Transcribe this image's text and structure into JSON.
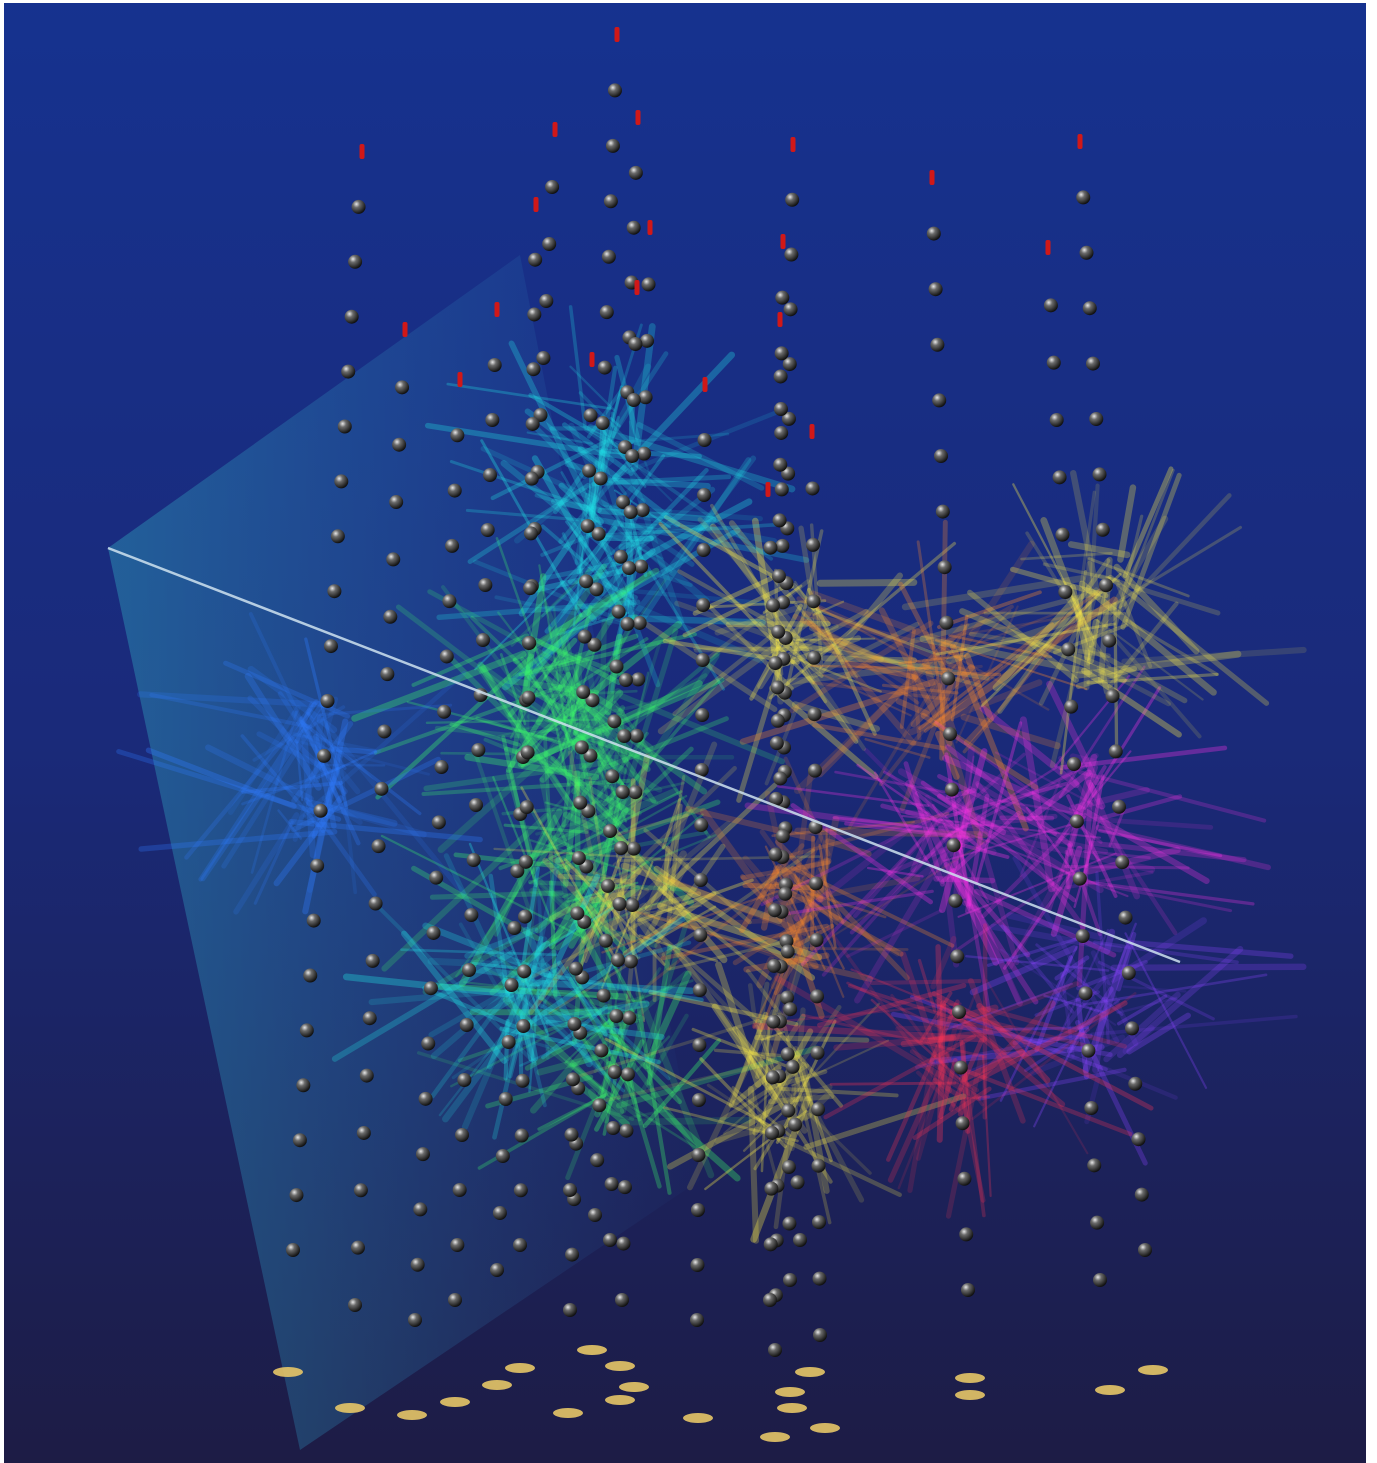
{
  "image": {
    "subject": "neutrino-event-display",
    "palette": {
      "background_top": "#16328f",
      "background_bottom": "#1d1c45",
      "cone": "#2e9bb8",
      "track": "#cfe3f0",
      "sensor": "#3a3a3a",
      "sensor_highlight": "#d8d8d8",
      "string_top_marker": "#d01818",
      "surface_station": "#e7c667",
      "glow_blue": "#2f7cff",
      "glow_cyan": "#22e3e8",
      "glow_green": "#3dff6a",
      "glow_yellow": "#fff04a",
      "glow_orange": "#ff8a2a",
      "glow_red": "#ff3355",
      "glow_magenta": "#ff33e8",
      "glow_violet": "#8a44ff"
    }
  }
}
